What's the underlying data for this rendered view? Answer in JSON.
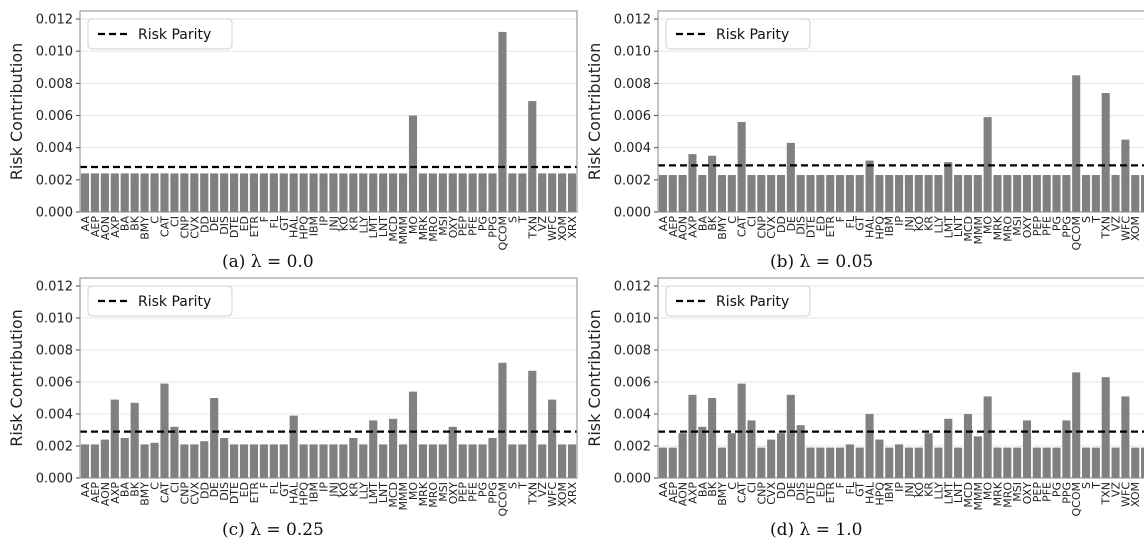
{
  "colors": {
    "bar": "#808080",
    "line": "#000000",
    "grid": "#e6e6e6",
    "axis": "#444444"
  },
  "tickers": {
    "a": [
      "AA",
      "AEP",
      "AON",
      "AXP",
      "BA",
      "BK",
      "BMY",
      "C",
      "CAT",
      "CI",
      "CNP",
      "CVX",
      "DD",
      "DE",
      "DIS",
      "DTE",
      "ED",
      "ETR",
      "F",
      "FL",
      "GT",
      "HAL",
      "HPQ",
      "IBM",
      "IP",
      "JNJ",
      "KO",
      "KR",
      "LLY",
      "LMT",
      "LNT",
      "MCD",
      "MMM",
      "MO",
      "MRK",
      "MRO",
      "MSI",
      "OXY",
      "PEP",
      "PFE",
      "PG",
      "PPG",
      "QCOM",
      "S",
      "T",
      "TXN",
      "VZ",
      "WFC",
      "XOM",
      "XRX"
    ],
    "c": [
      "AA",
      "AEP",
      "AON",
      "AXP",
      "BA",
      "BK",
      "BMY",
      "C",
      "CAT",
      "CI",
      "CNP",
      "CVX",
      "DD",
      "DE",
      "DIS",
      "DTE",
      "ED",
      "ETR",
      "F",
      "FL",
      "GT",
      "HAL",
      "HPQ",
      "IBM",
      "IP",
      "JNJ",
      "KO",
      "KR",
      "LLY",
      "LMT",
      "LNT",
      "MCD",
      "MMM",
      "MO",
      "MRK",
      "MRO",
      "MSI",
      "OXY",
      "PEP",
      "PFE",
      "PG",
      "PPG",
      "QCOM",
      "S",
      "T",
      "TXN",
      "VZ",
      "WFC",
      "XOM",
      "XRX"
    ]
  },
  "chart_data": [
    {
      "type": "bar",
      "caption": "(a)   λ = 0.0",
      "ylabel": "Risk Contribution",
      "ylim": [
        0,
        0.0125
      ],
      "yticks": [
        "0.000",
        "0.002",
        "0.004",
        "0.006",
        "0.008",
        "0.010",
        "0.012"
      ],
      "legend": {
        "label": "Risk Parity",
        "placement": "top-left"
      },
      "risk_parity": 0.0028,
      "grid": true,
      "categories": [
        "AA",
        "AEP",
        "AON",
        "AXP",
        "BA",
        "BK",
        "BMY",
        "C",
        "CAT",
        "CI",
        "CNP",
        "CVX",
        "DD",
        "DE",
        "DIS",
        "DTE",
        "ED",
        "ETR",
        "F",
        "FL",
        "GT",
        "HAL",
        "HPQ",
        "IBM",
        "IP",
        "JNJ",
        "KO",
        "KR",
        "LLY",
        "LMT",
        "LNT",
        "MCD",
        "MMM",
        "MO",
        "MRK",
        "MRO",
        "MSI",
        "OXY",
        "PEP",
        "PFE",
        "PG",
        "PPG",
        "QCOM",
        "S",
        "T",
        "TXN",
        "VZ",
        "WFC",
        "XOM",
        "XRX"
      ],
      "values": [
        0.0024,
        0.0024,
        0.0024,
        0.0024,
        0.0024,
        0.0024,
        0.0024,
        0.0024,
        0.0024,
        0.0024,
        0.0024,
        0.0024,
        0.0024,
        0.0024,
        0.0024,
        0.0024,
        0.0024,
        0.0024,
        0.0024,
        0.0024,
        0.0024,
        0.0024,
        0.0024,
        0.0024,
        0.0024,
        0.0024,
        0.0024,
        0.0024,
        0.0024,
        0.0024,
        0.0024,
        0.0024,
        0.0024,
        0.006,
        0.0024,
        0.0024,
        0.0024,
        0.0024,
        0.0024,
        0.0024,
        0.0024,
        0.0024,
        0.0112,
        0.0024,
        0.0024,
        0.0069,
        0.0024,
        0.0024,
        0.0024,
        0.0024
      ]
    },
    {
      "type": "bar",
      "caption": "(b)   λ = 0.05",
      "ylabel": "Risk Contribution",
      "ylim": [
        0,
        0.0125
      ],
      "yticks": [
        "0.000",
        "0.002",
        "0.004",
        "0.006",
        "0.008",
        "0.010",
        "0.012"
      ],
      "legend": {
        "label": "Risk Parity",
        "placement": "top-left"
      },
      "risk_parity": 0.0029,
      "grid": true,
      "categories": [
        "AA",
        "AEP",
        "AON",
        "AXP",
        "BA",
        "BK",
        "BMY",
        "C",
        "CAT",
        "CI",
        "CNP",
        "CVX",
        "DD",
        "DE",
        "DIS",
        "DTE",
        "ED",
        "ETR",
        "F",
        "FL",
        "GT",
        "HAL",
        "HPQ",
        "IBM",
        "IP",
        "JNJ",
        "KO",
        "KR",
        "LLY",
        "LMT",
        "LNT",
        "MCD",
        "MMM",
        "MO",
        "MRK",
        "MRO",
        "MSI",
        "OXY",
        "PEP",
        "PFE",
        "PG",
        "PPG",
        "QCOM",
        "S",
        "T",
        "TXN",
        "VZ",
        "WFC",
        "XOM",
        "XRX"
      ],
      "values": [
        0.0023,
        0.0023,
        0.0023,
        0.0036,
        0.0023,
        0.0035,
        0.0023,
        0.0023,
        0.0056,
        0.0023,
        0.0023,
        0.0023,
        0.0023,
        0.0043,
        0.0023,
        0.0023,
        0.0023,
        0.0023,
        0.0023,
        0.0023,
        0.0023,
        0.0032,
        0.0023,
        0.0023,
        0.0023,
        0.0023,
        0.0023,
        0.0023,
        0.0023,
        0.0031,
        0.0023,
        0.0023,
        0.0023,
        0.0059,
        0.0023,
        0.0023,
        0.0023,
        0.0023,
        0.0023,
        0.0023,
        0.0023,
        0.0023,
        0.0085,
        0.0023,
        0.0023,
        0.0074,
        0.0023,
        0.0045,
        0.0023,
        0.0023
      ]
    },
    {
      "type": "bar",
      "caption": "(c)   λ = 0.25",
      "ylabel": "Risk Contribution",
      "ylim": [
        0,
        0.0125
      ],
      "yticks": [
        "0.000",
        "0.002",
        "0.004",
        "0.006",
        "0.008",
        "0.010",
        "0.012"
      ],
      "legend": {
        "label": "Risk Parity",
        "placement": "top-left"
      },
      "risk_parity": 0.0029,
      "grid": true,
      "categories": [
        "AA",
        "AEP",
        "AON",
        "AXP",
        "BA",
        "BK",
        "BMY",
        "C",
        "CAT",
        "CI",
        "CNP",
        "CVX",
        "DD",
        "DE",
        "DIS",
        "DTE",
        "ED",
        "ETR",
        "F",
        "FL",
        "GT",
        "HAL",
        "HPQ",
        "IBM",
        "IP",
        "JNJ",
        "KO",
        "KR",
        "LLY",
        "LMT",
        "LNT",
        "MCD",
        "MMM",
        "MO",
        "MRK",
        "MRO",
        "MSI",
        "OXY",
        "PEP",
        "PFE",
        "PG",
        "PPG",
        "QCOM",
        "S",
        "T",
        "TXN",
        "VZ",
        "WFC",
        "XOM",
        "XRX"
      ],
      "values": [
        0.0021,
        0.0021,
        0.0024,
        0.0049,
        0.0025,
        0.0047,
        0.0021,
        0.0022,
        0.0059,
        0.0032,
        0.0021,
        0.0021,
        0.0023,
        0.005,
        0.0025,
        0.0021,
        0.0021,
        0.0021,
        0.0021,
        0.0021,
        0.0021,
        0.0039,
        0.0021,
        0.0021,
        0.0021,
        0.0021,
        0.0021,
        0.0025,
        0.0021,
        0.0036,
        0.0021,
        0.0037,
        0.0021,
        0.0054,
        0.0021,
        0.0021,
        0.0021,
        0.0032,
        0.0021,
        0.0021,
        0.0021,
        0.0025,
        0.0072,
        0.0021,
        0.0021,
        0.0067,
        0.0021,
        0.0049,
        0.0021,
        0.0021
      ]
    },
    {
      "type": "bar",
      "caption": "(d)   λ = 1.0",
      "ylabel": "Risk Contribution",
      "ylim": [
        0,
        0.0125
      ],
      "yticks": [
        "0.000",
        "0.002",
        "0.004",
        "0.006",
        "0.008",
        "0.010",
        "0.012"
      ],
      "legend": {
        "label": "Risk Parity",
        "placement": "top-left"
      },
      "risk_parity": 0.0029,
      "grid": true,
      "categories": [
        "AA",
        "AEP",
        "AON",
        "AXP",
        "BA",
        "BK",
        "BMY",
        "C",
        "CAT",
        "CI",
        "CNP",
        "CVX",
        "DD",
        "DE",
        "DIS",
        "DTE",
        "ED",
        "ETR",
        "F",
        "FL",
        "GT",
        "HAL",
        "HPQ",
        "IBM",
        "IP",
        "JNJ",
        "KO",
        "KR",
        "LLY",
        "LMT",
        "LNT",
        "MCD",
        "MMM",
        "MO",
        "MRK",
        "MRO",
        "MSI",
        "OXY",
        "PEP",
        "PFE",
        "PG",
        "PPG",
        "QCOM",
        "S",
        "T",
        "TXN",
        "VZ",
        "WFC",
        "XOM",
        "XRX"
      ],
      "values": [
        0.0019,
        0.0019,
        0.0028,
        0.0052,
        0.0032,
        0.005,
        0.0019,
        0.0028,
        0.0059,
        0.0036,
        0.0019,
        0.0024,
        0.0028,
        0.0052,
        0.0033,
        0.0019,
        0.0019,
        0.0019,
        0.0019,
        0.0021,
        0.0019,
        0.004,
        0.0024,
        0.0019,
        0.0021,
        0.0019,
        0.0019,
        0.0028,
        0.0019,
        0.0037,
        0.0019,
        0.004,
        0.0026,
        0.0051,
        0.0019,
        0.0019,
        0.0019,
        0.0036,
        0.0019,
        0.0019,
        0.0019,
        0.0036,
        0.0066,
        0.0019,
        0.0019,
        0.0063,
        0.0019,
        0.0051,
        0.0019,
        0.0019
      ]
    }
  ]
}
